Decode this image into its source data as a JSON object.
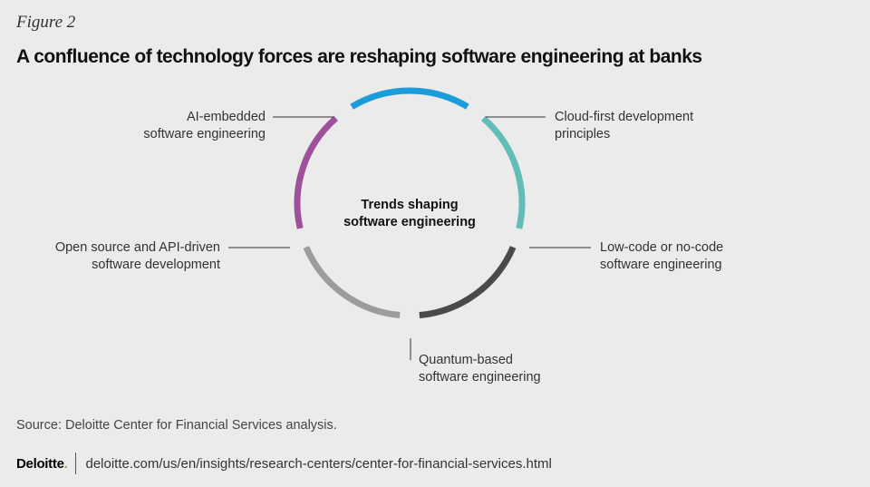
{
  "figure_label": "Figure 2",
  "title": "A confluence of technology forces are reshaping software engineering at banks",
  "center": {
    "line1": "Trends shaping",
    "line2": "software engineering"
  },
  "segments": [
    {
      "line1": "AI-embedded",
      "line2": "software engineering",
      "color": "#1b9ddb"
    },
    {
      "line1": "Cloud-first development",
      "line2": "principles",
      "color": "#62bcb8"
    },
    {
      "line1": "Low-code or no-code",
      "line2": "software engineering",
      "color": "#4a4a4a"
    },
    {
      "line1": "Quantum-based",
      "line2": "software engineering",
      "color": "#9c9c9c"
    },
    {
      "line1": "Open source and API-driven",
      "line2": "software development",
      "color": "#a04f9c"
    }
  ],
  "source": "Source: Deloitte Center for Financial Services analysis.",
  "footer": {
    "logo": "Deloitte",
    "logo_dot": ".",
    "logo_dot_color": "#86bc25",
    "url": "deloitte.com/us/en/insights/research-centers/center-for-financial-services.html"
  }
}
